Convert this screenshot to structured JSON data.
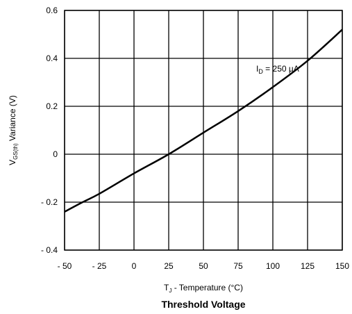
{
  "chart_data": {
    "type": "line",
    "title": "Threshold Voltage",
    "xlabel": {
      "main": "T",
      "sub": "J",
      "rest": " - Temperature (°C)"
    },
    "ylabel": {
      "main": "V",
      "sub": "GS(th)",
      "rest": " Variance (V)"
    },
    "xlim": [
      -50,
      150
    ],
    "ylim": [
      -0.4,
      0.6
    ],
    "grid": true,
    "x_ticks": [
      -50,
      -25,
      0,
      25,
      50,
      75,
      100,
      125,
      150
    ],
    "x_tick_labels": [
      "- 50",
      "- 25",
      "0",
      "25",
      "50",
      "75",
      "100",
      "125",
      "150"
    ],
    "y_ticks": [
      0.6,
      0.4,
      0.2,
      0,
      -0.2,
      -0.4
    ],
    "y_tick_labels": [
      "0.6",
      "0.4",
      "0.2",
      "0",
      "- 0.2",
      "- 0.4"
    ],
    "series": [
      {
        "name": "",
        "x": [
          -50,
          -37,
          -25,
          0,
          25,
          50,
          75,
          100,
          125,
          150
        ],
        "y": [
          -0.24,
          -0.2,
          -0.165,
          -0.08,
          0.0,
          0.09,
          0.18,
          0.28,
          0.39,
          0.52
        ]
      }
    ],
    "annotation": {
      "main": "I",
      "sub": "D",
      "rest": " = 250 µA",
      "x": 88,
      "y": 0.345
    }
  }
}
